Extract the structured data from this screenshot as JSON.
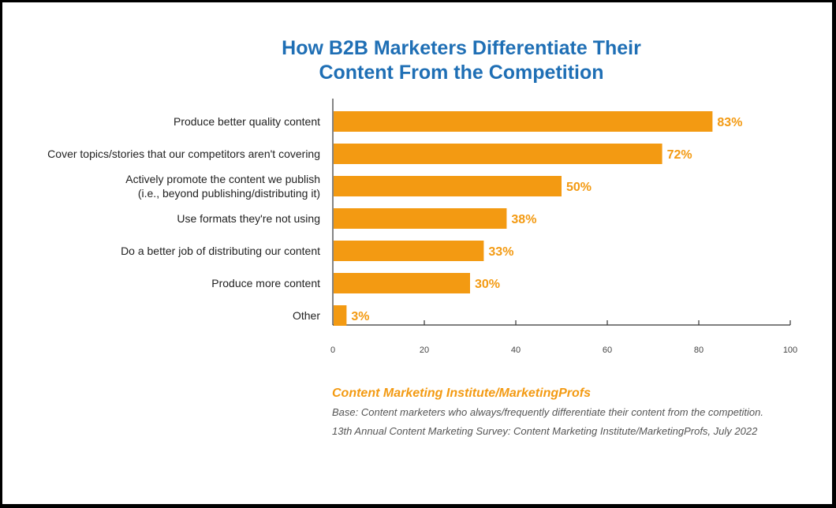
{
  "chart_data": {
    "type": "bar",
    "orientation": "horizontal",
    "title": [
      "How B2B Marketers Differentiate Their",
      "Content From the Competition"
    ],
    "categories": [
      [
        "Produce better quality content"
      ],
      [
        "Cover topics/stories that our competitors aren't covering"
      ],
      [
        "Actively promote the content we publish",
        "(i.e., beyond publishing/distributing it)"
      ],
      [
        "Use formats they're not using"
      ],
      [
        "Do a better job of distributing our content"
      ],
      [
        "Produce more content"
      ],
      [
        "Other"
      ]
    ],
    "values": [
      83,
      72,
      50,
      38,
      33,
      30,
      3
    ],
    "value_labels": [
      "83%",
      "72%",
      "50%",
      "38%",
      "33%",
      "30%",
      "3%"
    ],
    "xlim": [
      0,
      100
    ],
    "xticks": [
      "0",
      "20",
      "40",
      "60",
      "80",
      "100"
    ],
    "xlabel": "",
    "ylabel": "",
    "grid": false,
    "bar_color": "#f39a12"
  },
  "source": "Content Marketing Institute/MarketingProfs",
  "notes": [
    "Base: Content marketers who always/frequently differentiate their content from the competition.",
    "13th Annual Content Marketing Survey: Content Marketing Institute/MarketingProfs, July 2022"
  ]
}
